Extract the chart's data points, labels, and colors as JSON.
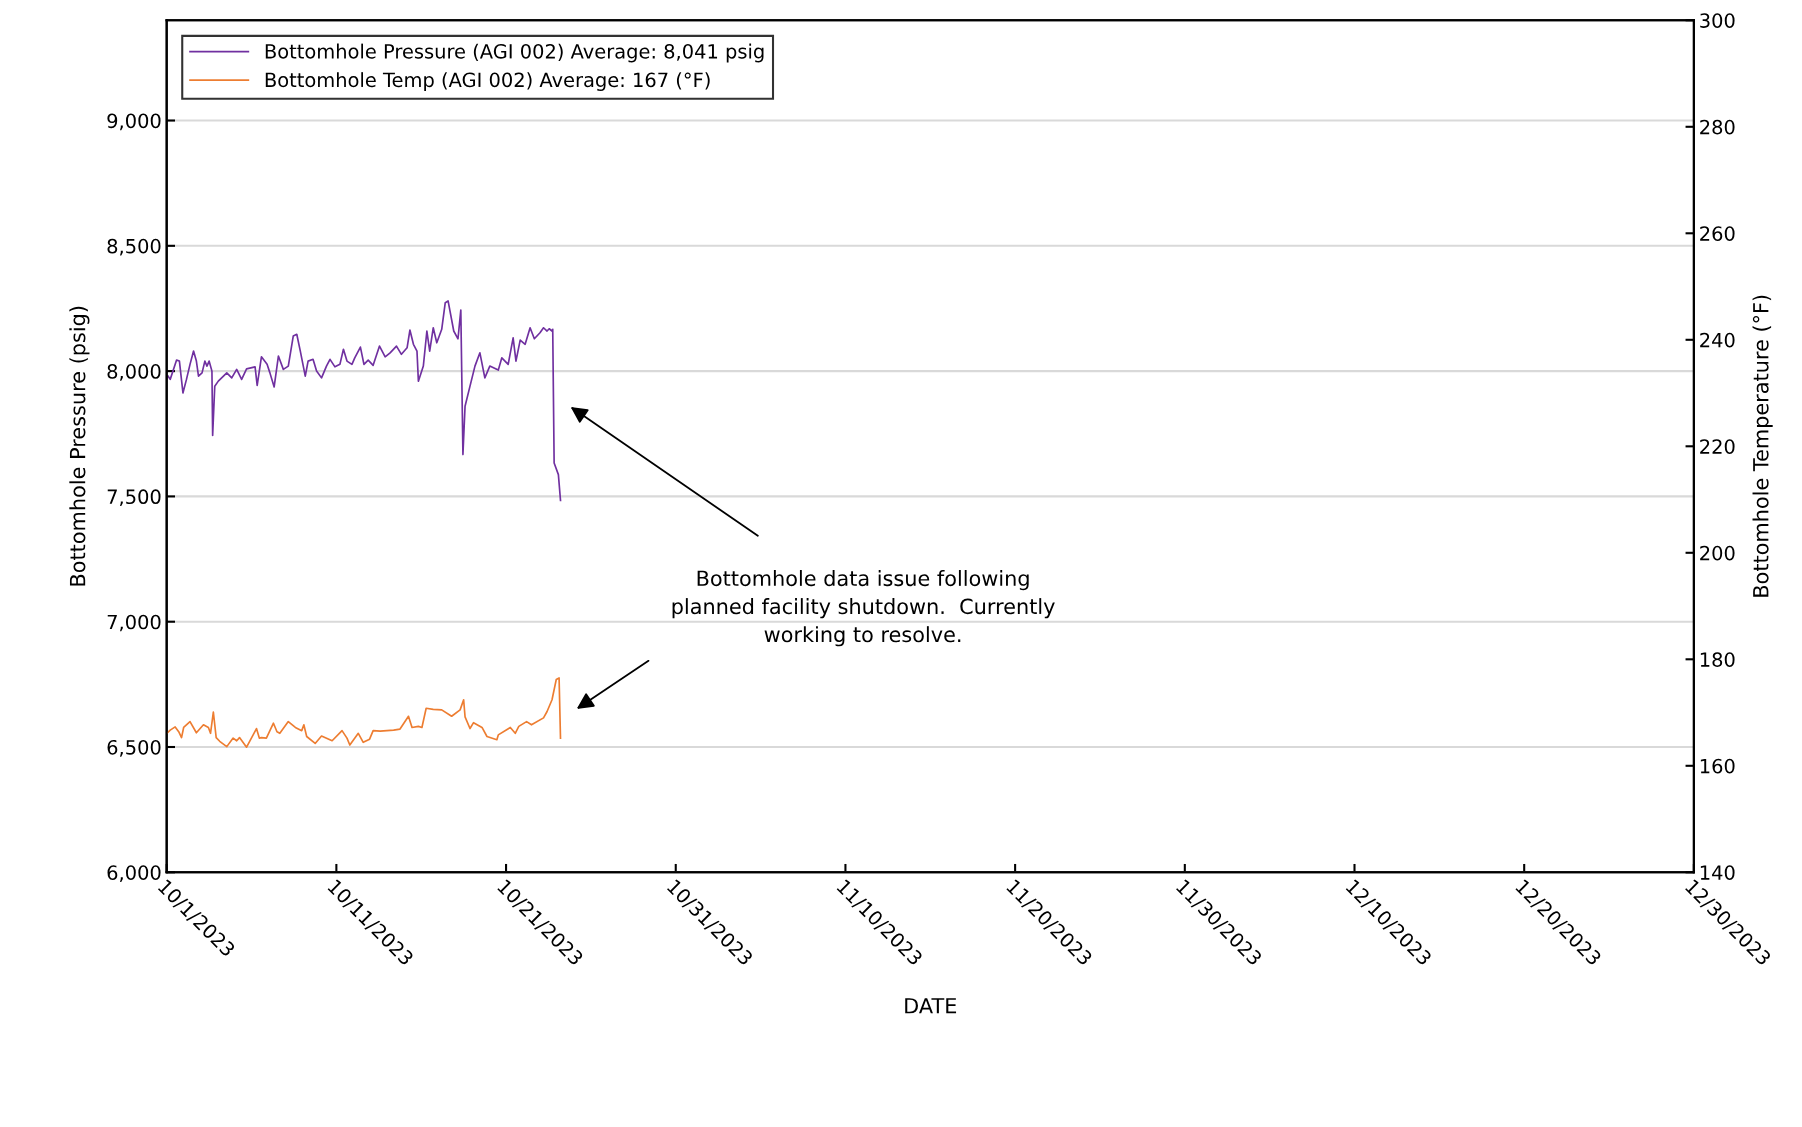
{
  "chart_data": {
    "type": "line",
    "xlabel": "DATE",
    "ylabel": "Bottomhole Pressure (psig)",
    "y2label": "Bottomhole Temperature (°F)",
    "annotations": [
      "Bottomhole data issue following\nplanned facility shutdown.  Currently\nworking to resolve."
    ],
    "xlim": [
      "2023-10-01",
      "2023-12-30"
    ],
    "xticks": [
      {
        "value": "2023-10-01",
        "label": "10/1/2023"
      },
      {
        "value": "2023-10-11",
        "label": "10/11/2023"
      },
      {
        "value": "2023-10-21",
        "label": "10/21/2023"
      },
      {
        "value": "2023-10-31",
        "label": "10/31/2023"
      },
      {
        "value": "2023-11-10",
        "label": "11/10/2023"
      },
      {
        "value": "2023-11-20",
        "label": "11/20/2023"
      },
      {
        "value": "2023-11-30",
        "label": "11/30/2023"
      },
      {
        "value": "2023-12-10",
        "label": "12/10/2023"
      },
      {
        "value": "2023-12-20",
        "label": "12/20/2023"
      },
      {
        "value": "2023-12-30",
        "label": "12/30/2023"
      }
    ],
    "ylim": [
      6000,
      9400
    ],
    "yticks": [
      {
        "value": 6000,
        "label": "6,000"
      },
      {
        "value": 6500,
        "label": "6,500"
      },
      {
        "value": 7000,
        "label": "7,000"
      },
      {
        "value": 7500,
        "label": "7,500"
      },
      {
        "value": 8000,
        "label": "8,000"
      },
      {
        "value": 8500,
        "label": "8,500"
      },
      {
        "value": 9000,
        "label": "9,000"
      }
    ],
    "y2lim": [
      140,
      300
    ],
    "y2ticks": [
      140,
      160,
      180,
      200,
      220,
      240,
      260,
      280,
      300
    ],
    "grid": "y",
    "legend": "top left",
    "marker": "none",
    "line_style": "solid",
    "series": [
      {
        "name": "Bottomhole Pressure (AGI 002) Average: 8,041 psig",
        "color": "#7030a0",
        "x": [
          "2023-10-01T02:00",
          "2023-10-01T05:00",
          "2023-10-01T14:00",
          "2023-10-01T18:00",
          "2023-10-01T23:00",
          "2023-10-02T04:00",
          "2023-10-02T09:00",
          "2023-10-02T14:00",
          "2023-10-02T18:00",
          "2023-10-02T21:00",
          "2023-10-03T02:00",
          "2023-10-03T06:00",
          "2023-10-03T09:00",
          "2023-10-03T12:00",
          "2023-10-03T16:00",
          "2023-10-03T17:00",
          "2023-10-03T20:00",
          "2023-10-04T01:00",
          "2023-10-04T13:00",
          "2023-10-04T20:00",
          "2023-10-05T03:00",
          "2023-10-05T10:00",
          "2023-10-05T17:00",
          "2023-10-06T05:00",
          "2023-10-06T08:00",
          "2023-10-06T14:00",
          "2023-10-06T22:00",
          "2023-10-07T02:00",
          "2023-10-07T08:00",
          "2023-10-07T14:00",
          "2023-10-07T21:00",
          "2023-10-08T04:00",
          "2023-10-08T11:00",
          "2023-10-08T16:00",
          "2023-10-08T21:00",
          "2023-10-09T04:00",
          "2023-10-09T08:00",
          "2023-10-09T15:00",
          "2023-10-09T20:00",
          "2023-10-10T03:00",
          "2023-10-10T10:00",
          "2023-10-10T15:00",
          "2023-10-10T22:00",
          "2023-10-11T05:00",
          "2023-10-11T10:00",
          "2023-10-11T15:00",
          "2023-10-11T22:00",
          "2023-10-12T02:00",
          "2023-10-12T10:00",
          "2023-10-12T15:00",
          "2023-10-12T21:00",
          "2023-10-13T04:00",
          "2023-10-13T13:00",
          "2023-10-13T21:00",
          "2023-10-14T04:00",
          "2023-10-14T13:00",
          "2023-10-14T20:00",
          "2023-10-15T04:00",
          "2023-10-15T08:00",
          "2023-10-15T13:00",
          "2023-10-15T18:00",
          "2023-10-15T20:00",
          "2023-10-16T03:00",
          "2023-10-16T08:00",
          "2023-10-16T12:00",
          "2023-10-16T17:00",
          "2023-10-16T22:00",
          "2023-10-17T05:00",
          "2023-10-17T10:00",
          "2023-10-17T14:00",
          "2023-10-17T22:00",
          "2023-10-18T04:00",
          "2023-10-18T08:00",
          "2023-10-18T11:00",
          "2023-10-18T14:00",
          "2023-10-18T21:00",
          "2023-10-19T04:00",
          "2023-10-19T11:00",
          "2023-10-19T18:00",
          "2023-10-20T01:00",
          "2023-10-20T13:00",
          "2023-10-20T18:00",
          "2023-10-21T03:00",
          "2023-10-21T10:00",
          "2023-10-21T14:00",
          "2023-10-21T20:00",
          "2023-10-22T03:00",
          "2023-10-22T10:00",
          "2023-10-22T16:00",
          "2023-10-23T00:00",
          "2023-10-23T05:00",
          "2023-10-23T10:00",
          "2023-10-23T13:00",
          "2023-10-23T17:00",
          "2023-10-23T18:00",
          "2023-10-23T20:00",
          "2023-10-24T02:00",
          "2023-10-24T05:00"
        ],
        "values": [
          7980,
          7967,
          8044,
          8040,
          7913,
          7967,
          8027,
          8080,
          8040,
          7980,
          7993,
          8040,
          8020,
          8040,
          8000,
          7743,
          7940,
          7960,
          7993,
          7973,
          8007,
          7967,
          8009,
          8017,
          7943,
          8057,
          8027,
          7993,
          7937,
          8060,
          8007,
          8020,
          8140,
          8147,
          8080,
          7980,
          8040,
          8047,
          8000,
          7973,
          8020,
          8047,
          8017,
          8027,
          8087,
          8040,
          8027,
          8053,
          8096,
          8027,
          8044,
          8023,
          8100,
          8057,
          8073,
          8100,
          8067,
          8093,
          8164,
          8107,
          8080,
          7960,
          8020,
          8160,
          8080,
          8173,
          8113,
          8167,
          8273,
          8280,
          8160,
          8129,
          8244,
          7667,
          7860,
          7940,
          8020,
          8073,
          7973,
          8020,
          8004,
          8053,
          8027,
          8133,
          8040,
          8124,
          8107,
          8173,
          8129,
          8153,
          8173,
          8160,
          8169,
          8160,
          8167,
          7633,
          7587,
          7484
        ]
      },
      {
        "name": "Bottomhole Temp (AGI 002) Average: 167 (°F)",
        "color": "#ed7d31",
        "axis": "y2",
        "x": [
          "2023-10-01T01:00",
          "2023-10-01T05:00",
          "2023-10-01T12:00",
          "2023-10-01T17:00",
          "2023-10-01T21:00",
          "2023-10-02T00:00",
          "2023-10-02T09:00",
          "2023-10-02T18:00",
          "2023-10-03T04:00",
          "2023-10-03T11:00",
          "2023-10-03T14:00",
          "2023-10-03T18:00",
          "2023-10-03T22:00",
          "2023-10-04T03:00",
          "2023-10-04T13:00",
          "2023-10-04T22:00",
          "2023-10-05T03:00",
          "2023-10-05T07:00",
          "2023-10-05T17:00",
          "2023-10-06T07:00",
          "2023-10-06T11:00",
          "2023-10-06T14:00",
          "2023-10-06T21:00",
          "2023-10-07T07:00",
          "2023-10-07T12:00",
          "2023-10-07T16:00",
          "2023-10-08T04:00",
          "2023-10-08T14:00",
          "2023-10-08T23:00",
          "2023-10-09T02:00",
          "2023-10-09T06:00",
          "2023-10-09T18:00",
          "2023-10-10T03:00",
          "2023-10-10T18:00",
          "2023-10-11T08:00",
          "2023-10-11T15:00",
          "2023-10-11T19:00",
          "2023-10-12T07:00",
          "2023-10-12T14:00",
          "2023-10-12T23:00",
          "2023-10-13T04:00",
          "2023-10-13T14:00",
          "2023-10-14T09:00",
          "2023-10-14T18:00",
          "2023-10-15T06:00",
          "2023-10-15T11:00",
          "2023-10-15T20:00",
          "2023-10-16T01:00",
          "2023-10-16T07:00",
          "2023-10-16T17:00",
          "2023-10-17T05:00",
          "2023-10-17T19:00",
          "2023-10-18T07:00",
          "2023-10-18T12:00",
          "2023-10-18T14:00",
          "2023-10-18T21:00",
          "2023-10-19T02:00",
          "2023-10-19T14:00",
          "2023-10-19T21:00",
          "2023-10-20T11:00",
          "2023-10-20T13:00",
          "2023-10-21T06:00",
          "2023-10-21T13:00",
          "2023-10-21T18:00",
          "2023-10-22T05:00",
          "2023-10-22T12:00",
          "2023-10-23T05:00",
          "2023-10-23T10:00",
          "2023-10-23T17:00",
          "2023-10-23T23:00",
          "2023-10-24T03:00",
          "2023-10-24T05:00"
        ],
        "values": [
          166.2,
          166.7,
          167.3,
          166.4,
          165.3,
          167.2,
          168.3,
          166.2,
          167.7,
          167.2,
          166.1,
          170.1,
          165.3,
          164.6,
          163.6,
          165.2,
          164.7,
          165.3,
          163.5,
          167.0,
          165.2,
          165.3,
          165.2,
          168.0,
          166.4,
          166.1,
          168.3,
          167.2,
          166.6,
          167.7,
          165.5,
          164.2,
          165.6,
          164.7,
          166.6,
          165.2,
          163.9,
          166.1,
          164.4,
          165.0,
          166.6,
          166.5,
          166.7,
          166.9,
          169.3,
          167.2,
          167.4,
          167.2,
          170.8,
          170.6,
          170.5,
          169.3,
          170.5,
          172.4,
          169.2,
          167.0,
          168.1,
          167.2,
          165.5,
          164.9,
          165.8,
          167.2,
          166.1,
          167.4,
          168.3,
          167.7,
          169.0,
          170.2,
          172.4,
          176.2,
          176.5,
          165.2
        ]
      }
    ]
  }
}
